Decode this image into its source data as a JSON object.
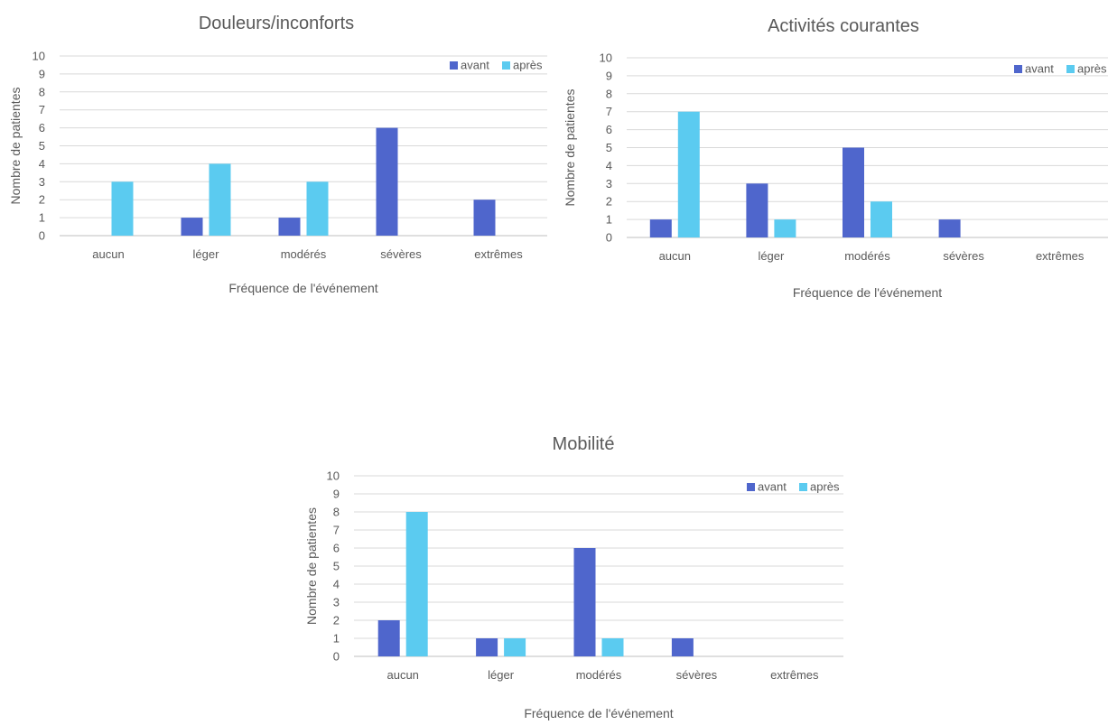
{
  "chart_data": [
    {
      "type": "bar",
      "title": "Douleurs/inconforts",
      "xlabel": "Fréquence de l'événement",
      "ylabel": "Nombre de patientes",
      "categories": [
        "aucun",
        "léger",
        "modérés",
        "sévères",
        "extrêmes"
      ],
      "ylim": [
        0,
        10
      ],
      "yticks": [
        "0",
        "1",
        "2",
        "3",
        "4",
        "5",
        "6",
        "7",
        "8",
        "9",
        "10"
      ],
      "grid": true,
      "legend_position": "top-right",
      "series": [
        {
          "name": "avant",
          "color": "#4F66CC",
          "values": [
            0,
            1,
            1,
            6,
            2
          ]
        },
        {
          "name": "après",
          "color": "#5BCBF0",
          "values": [
            3,
            4,
            3,
            0,
            0
          ]
        }
      ]
    },
    {
      "type": "bar",
      "title": "Activités courantes",
      "xlabel": "Fréquence de l'événement",
      "ylabel": "Nombre de patientes",
      "categories": [
        "aucun",
        "léger",
        "modérés",
        "sévères",
        "extrêmes"
      ],
      "ylim": [
        0,
        10
      ],
      "yticks": [
        "0",
        "1",
        "2",
        "3",
        "4",
        "5",
        "6",
        "7",
        "8",
        "9",
        "10"
      ],
      "grid": true,
      "legend_position": "top-right",
      "series": [
        {
          "name": "avant",
          "color": "#4F66CC",
          "values": [
            1,
            3,
            5,
            1,
            0
          ]
        },
        {
          "name": "après",
          "color": "#5BCBF0",
          "values": [
            7,
            1,
            2,
            0,
            0
          ]
        }
      ]
    },
    {
      "type": "bar",
      "title": "Mobilité",
      "xlabel": "Fréquence de l'événement",
      "ylabel": "Nombre de patientes",
      "categories": [
        "aucun",
        "léger",
        "modérés",
        "sévères",
        "extrêmes"
      ],
      "ylim": [
        0,
        10
      ],
      "yticks": [
        "0",
        "1",
        "2",
        "3",
        "4",
        "5",
        "6",
        "7",
        "8",
        "9",
        "10"
      ],
      "grid": true,
      "legend_position": "top-right",
      "series": [
        {
          "name": "avant",
          "color": "#4F66CC",
          "values": [
            2,
            1,
            6,
            1,
            0
          ]
        },
        {
          "name": "après",
          "color": "#5BCBF0",
          "values": [
            8,
            1,
            1,
            0,
            0
          ]
        }
      ]
    }
  ]
}
